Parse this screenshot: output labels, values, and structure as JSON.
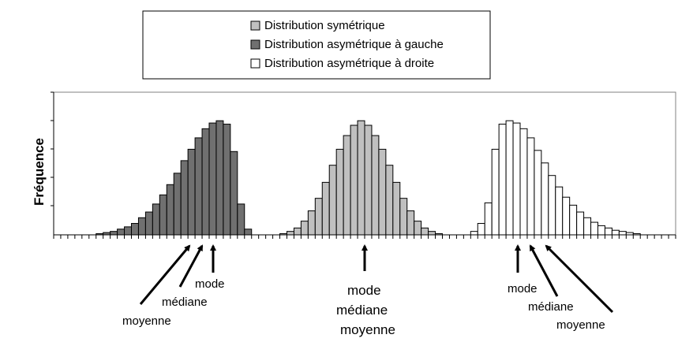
{
  "chart_data": {
    "type": "bar",
    "title": "",
    "xlabel": "",
    "ylabel": "Fréquence",
    "ylim": [
      0,
      1
    ],
    "grid": false,
    "legend_position": "top-center",
    "series": [
      {
        "name": "Distribution asymétrique à gauche",
        "fill": "#707070",
        "start_bin": 6,
        "values": [
          0.01,
          0.02,
          0.03,
          0.05,
          0.07,
          0.1,
          0.15,
          0.2,
          0.27,
          0.35,
          0.44,
          0.54,
          0.65,
          0.75,
          0.85,
          0.93,
          0.98,
          1.0,
          0.97,
          0.73,
          0.27,
          0.05
        ]
      },
      {
        "name": "Distribution symétrique",
        "fill": "#c0c0c0",
        "start_bin": 32,
        "values": [
          0.01,
          0.03,
          0.06,
          0.12,
          0.21,
          0.32,
          0.46,
          0.61,
          0.75,
          0.87,
          0.96,
          1.0,
          0.96,
          0.87,
          0.75,
          0.61,
          0.46,
          0.32,
          0.21,
          0.12,
          0.06,
          0.03,
          0.01
        ]
      },
      {
        "name": "Distribution asymétrique à droite",
        "fill": "#ffffff",
        "start_bin": 59,
        "values": [
          0.03,
          0.1,
          0.28,
          0.75,
          0.97,
          1.0,
          0.98,
          0.93,
          0.85,
          0.74,
          0.63,
          0.52,
          0.42,
          0.33,
          0.26,
          0.2,
          0.15,
          0.11,
          0.08,
          0.06,
          0.04,
          0.03,
          0.02,
          0.01
        ]
      }
    ],
    "total_bins": 88,
    "legend": [
      {
        "label": "Distribution symétrique",
        "fill": "#c0c0c0"
      },
      {
        "label": "Distribution asymétrique à gauche",
        "fill": "#707070"
      },
      {
        "label": "Distribution asymétrique à droite",
        "fill": "#ffffff"
      }
    ],
    "annotations": {
      "left": {
        "mode": "mode",
        "mediane": "médiane",
        "moyenne": "moyenne"
      },
      "center": {
        "mode": "mode",
        "mediane": "médiane",
        "moyenne": "moyenne"
      },
      "right": {
        "mode": "mode",
        "mediane": "médiane",
        "moyenne": "moyenne"
      }
    }
  }
}
